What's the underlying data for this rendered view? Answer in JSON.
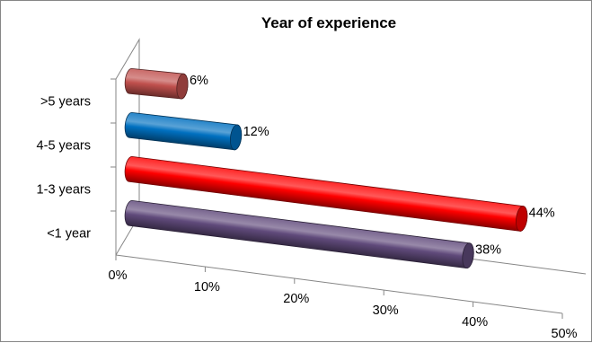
{
  "chart_data": {
    "type": "bar",
    "orientation": "horizontal",
    "style": "3d-cylinder",
    "title": "Year of experience",
    "categories": [
      ">5 years",
      "4-5 years",
      "1-3 years",
      "<1 year"
    ],
    "values": [
      6,
      12,
      44,
      38
    ],
    "data_labels": [
      "6%",
      "12%",
      "44%",
      "38%"
    ],
    "bar_colors": [
      "#c0504d",
      "#0070c0",
      "#ff0000",
      "#604a7b"
    ],
    "xlim": [
      0,
      50
    ],
    "x_ticks": [
      0,
      10,
      20,
      30,
      40,
      50
    ],
    "x_tick_labels": [
      "0%",
      "10%",
      "20%",
      "30%",
      "40%",
      "50%"
    ],
    "legend": "none",
    "grid": false
  }
}
